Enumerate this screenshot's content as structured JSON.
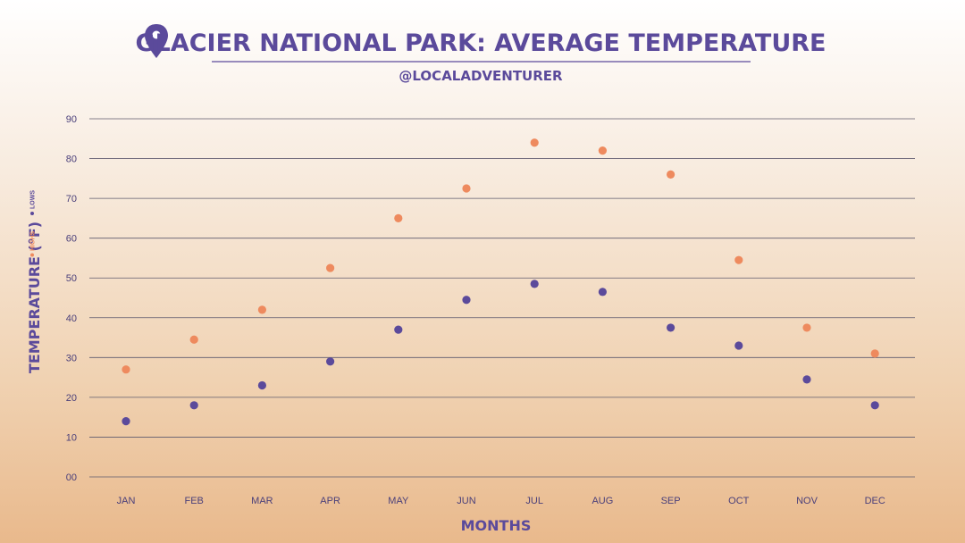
{
  "chart_data": {
    "type": "scatter",
    "title": "GLACIER NATIONAL PARK: AVERAGE TEMPERATURE",
    "subtitle": "@LOCALADVENTURER",
    "xlabel": "MONTHS",
    "ylabel": "TEMPERATURE (°F)",
    "categories": [
      "JAN",
      "FEB",
      "MAR",
      "APR",
      "MAY",
      "JUN",
      "JUL",
      "AUG",
      "SEP",
      "OCT",
      "NOV",
      "DEC"
    ],
    "ylim": [
      0,
      90
    ],
    "yticks": [
      "00",
      "10",
      "20",
      "30",
      "40",
      "50",
      "60",
      "70",
      "80",
      "90"
    ],
    "grid": true,
    "legend_position": "left, rotated",
    "series": [
      {
        "name": "HIGHS",
        "color": "#ee8a5e",
        "values": [
          27,
          34.5,
          42,
          52.5,
          65,
          72.5,
          84,
          82,
          76,
          54.5,
          37.5,
          31
        ]
      },
      {
        "name": "LOWS",
        "color": "#5b4a9b",
        "values": [
          14,
          18,
          23,
          29,
          37,
          44.5,
          48.5,
          46.5,
          37.5,
          33,
          24.5,
          18
        ]
      }
    ]
  },
  "icons": {
    "title_icon": "map-pin-icon"
  }
}
